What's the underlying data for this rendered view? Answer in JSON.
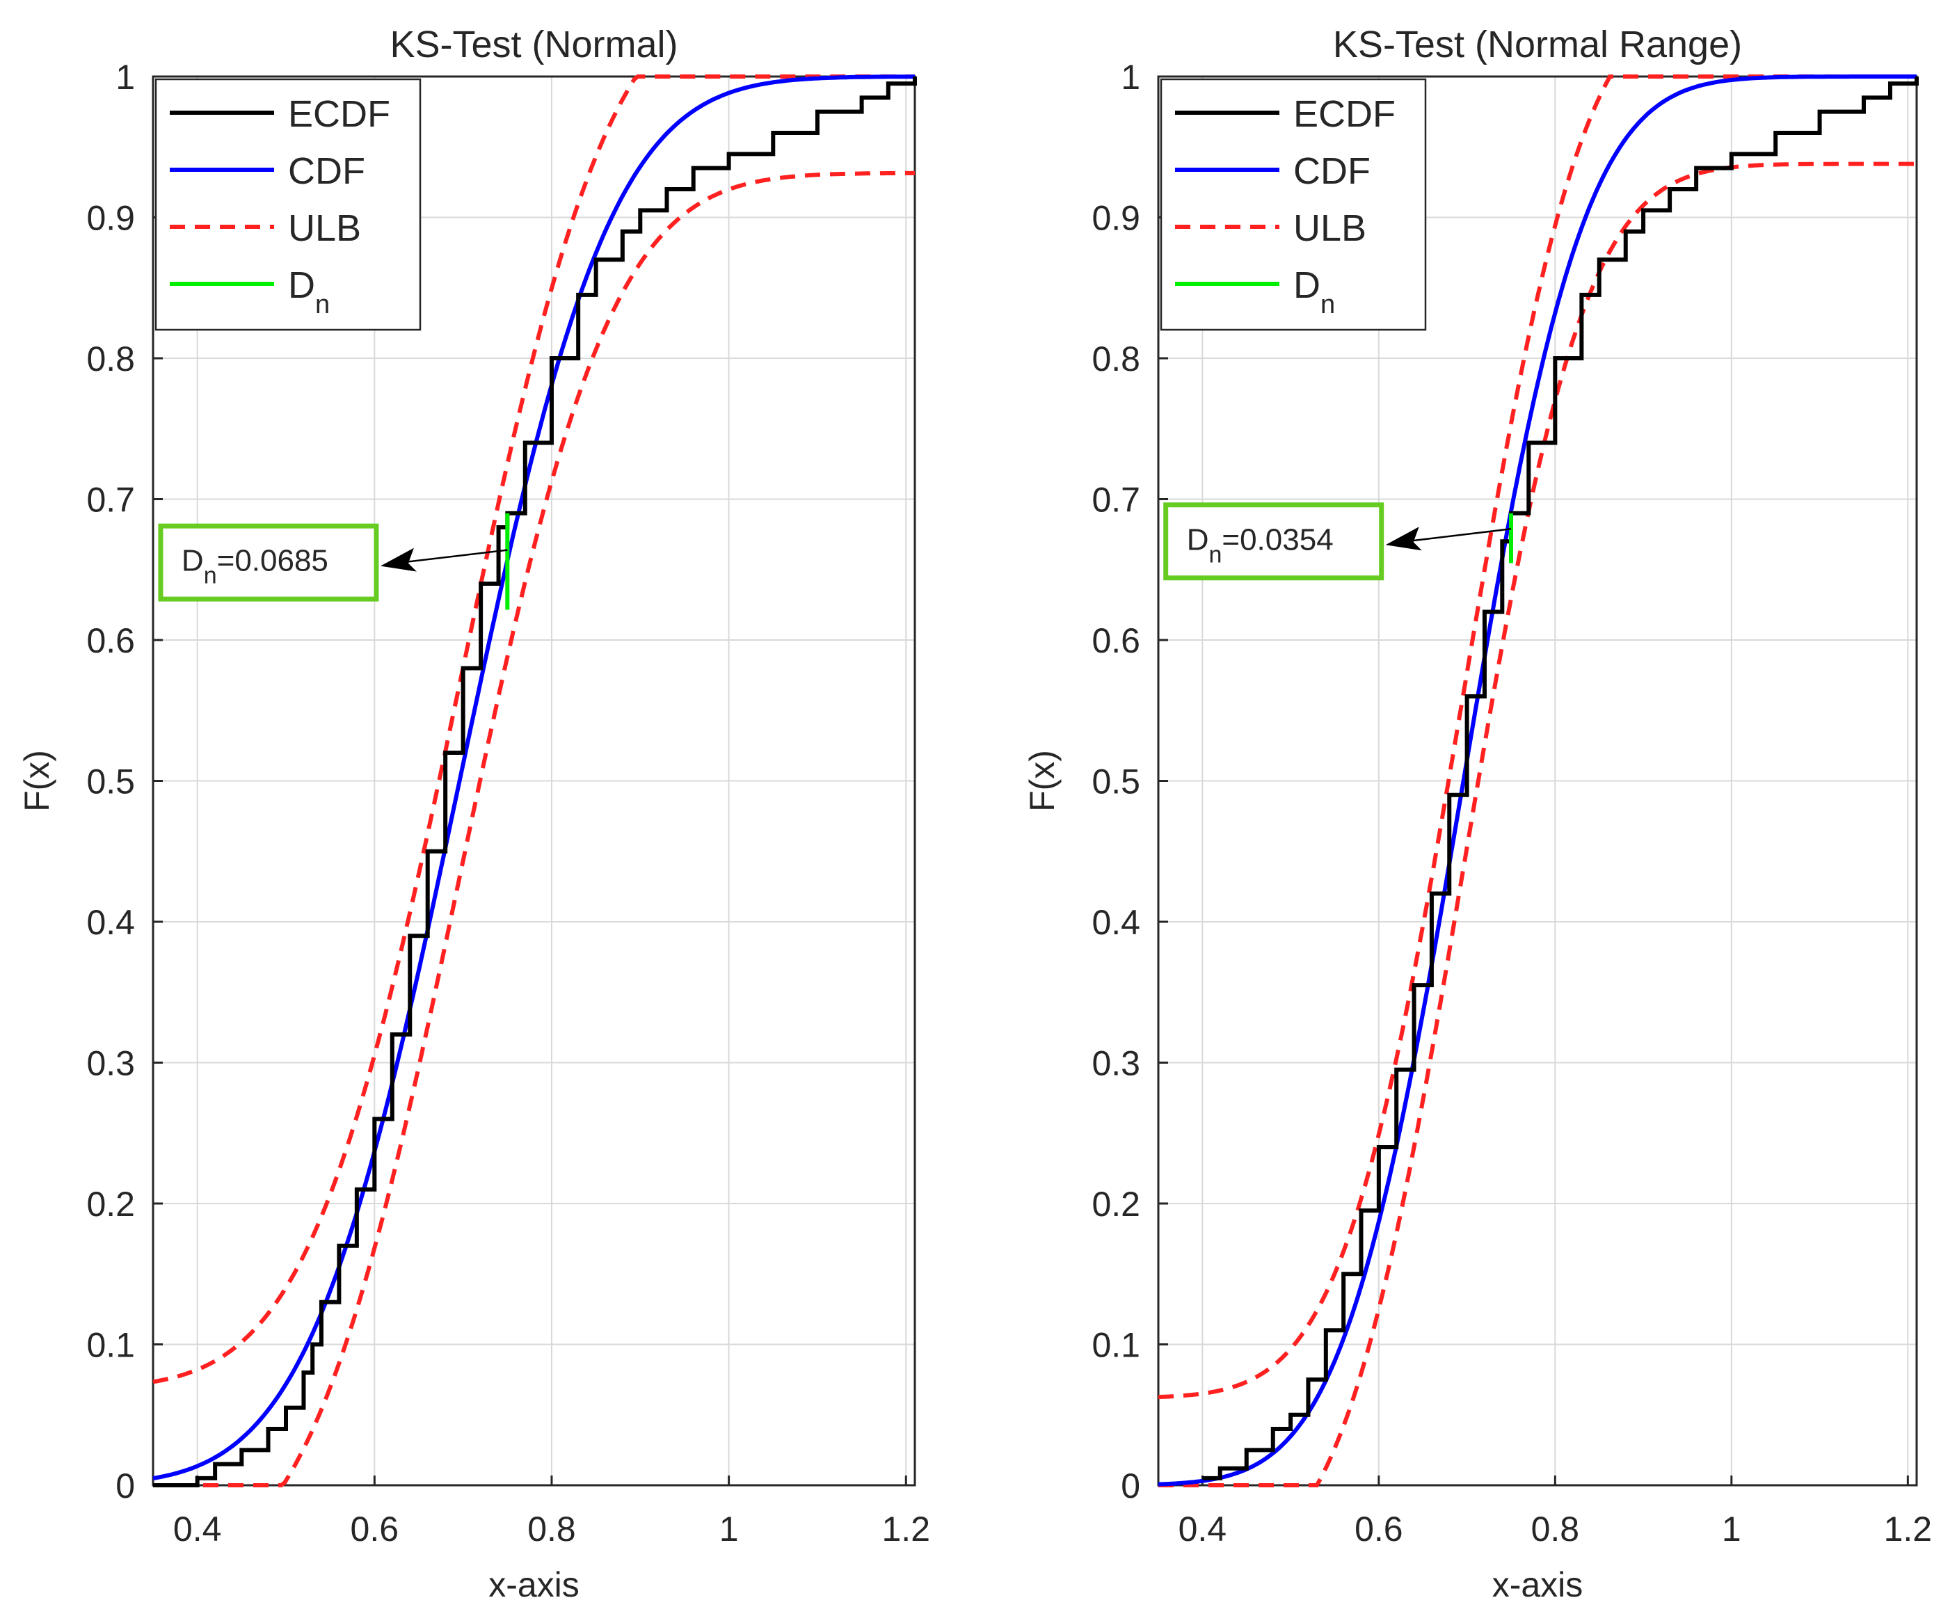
{
  "colors": {
    "ecdf": "#000000",
    "cdf": "#0000ff",
    "ulb": "#ff2020",
    "dn": "#00ee00",
    "annotation_box": "#66cc22",
    "grid": "#d9d9d9",
    "axes": "#262626"
  },
  "chart_data": [
    {
      "type": "line",
      "title": "KS-Test (Normal)",
      "xlabel": "x-axis",
      "ylabel": "F(x)",
      "xlim": [
        0.35,
        1.21
      ],
      "ylim": [
        0,
        1
      ],
      "grid": true,
      "xticks": [
        0.4,
        0.6,
        0.8,
        1,
        1.2
      ],
      "xtick_labels": [
        "0.4",
        "0.6",
        "0.8",
        "1",
        "1.2"
      ],
      "yticks": [
        0,
        0.1,
        0.2,
        0.3,
        0.4,
        0.5,
        0.6,
        0.7,
        0.8,
        0.9,
        1
      ],
      "ytick_labels": [
        "0",
        "0.1",
        "0.2",
        "0.3",
        "0.4",
        "0.5",
        "0.6",
        "0.7",
        "0.8",
        "0.9",
        "1"
      ],
      "legend": {
        "placement": "top-left",
        "entries": [
          {
            "label": "ECDF",
            "series": "ecdf"
          },
          {
            "label": "CDF",
            "series": "cdf"
          },
          {
            "label": "ULB",
            "series": "ulb"
          },
          {
            "label": "D",
            "sub": "n",
            "series": "dn"
          }
        ]
      },
      "series": [
        {
          "name": "ECDF",
          "key": "ecdf",
          "style": "solid",
          "x": [
            0.35,
            0.39,
            0.4,
            0.42,
            0.45,
            0.48,
            0.5,
            0.52,
            0.53,
            0.54,
            0.56,
            0.58,
            0.6,
            0.62,
            0.64,
            0.66,
            0.68,
            0.7,
            0.72,
            0.74,
            0.75,
            0.77,
            0.8,
            0.83,
            0.85,
            0.88,
            0.9,
            0.93,
            0.96,
            1.0,
            1.05,
            1.1,
            1.15,
            1.18,
            1.21
          ],
          "y": [
            0,
            0,
            0.005,
            0.015,
            0.025,
            0.04,
            0.055,
            0.08,
            0.1,
            0.13,
            0.17,
            0.21,
            0.26,
            0.32,
            0.39,
            0.45,
            0.52,
            0.58,
            0.64,
            0.68,
            0.69,
            0.74,
            0.8,
            0.845,
            0.87,
            0.89,
            0.905,
            0.92,
            0.935,
            0.945,
            0.96,
            0.975,
            0.985,
            0.995,
            1
          ]
        },
        {
          "name": "CDF",
          "key": "cdf",
          "style": "solid",
          "mu": 0.696,
          "sigma": 0.134
        },
        {
          "name": "ULB upper",
          "key": "ulb",
          "style": "dashed",
          "offset": 0.0685
        },
        {
          "name": "ULB lower",
          "key": "ulb",
          "style": "dashed",
          "offset": -0.0685
        },
        {
          "name": "D_n",
          "key": "dn",
          "style": "solid",
          "x": [
            0.75,
            0.75
          ],
          "y": [
            0.69,
            0.6215
          ]
        }
      ],
      "annotation": {
        "prefix": "D",
        "sub": "n",
        "value_text": "=0.0685",
        "arrow_to": [
          0.75,
          0.655
        ],
        "box_anchor": [
          0.39,
          0.655
        ]
      }
    },
    {
      "type": "line",
      "title": "KS-Test (Normal Range)",
      "xlabel": "x-axis",
      "ylabel": "F(x)",
      "xlim": [
        0.35,
        1.21
      ],
      "ylim": [
        0,
        1
      ],
      "grid": true,
      "xticks": [
        0.4,
        0.6,
        0.8,
        1,
        1.2
      ],
      "xtick_labels": [
        "0.4",
        "0.6",
        "0.8",
        "1",
        "1.2"
      ],
      "yticks": [
        0,
        0.1,
        0.2,
        0.3,
        0.4,
        0.5,
        0.6,
        0.7,
        0.8,
        0.9,
        1
      ],
      "ytick_labels": [
        "0",
        "0.1",
        "0.2",
        "0.3",
        "0.4",
        "0.5",
        "0.6",
        "0.7",
        "0.8",
        "0.9",
        "1"
      ],
      "legend": {
        "placement": "top-left",
        "entries": [
          {
            "label": "ECDF",
            "series": "ecdf"
          },
          {
            "label": "CDF",
            "series": "cdf"
          },
          {
            "label": "ULB",
            "series": "ulb"
          },
          {
            "label": "D",
            "sub": "n",
            "series": "dn"
          }
        ]
      },
      "series": [
        {
          "name": "ECDF",
          "key": "ecdf",
          "style": "solid",
          "x": [
            0.4,
            0.42,
            0.45,
            0.48,
            0.5,
            0.52,
            0.54,
            0.56,
            0.58,
            0.6,
            0.62,
            0.64,
            0.66,
            0.68,
            0.7,
            0.72,
            0.74,
            0.75,
            0.77,
            0.8,
            0.83,
            0.85,
            0.88,
            0.9,
            0.93,
            0.96,
            1.0,
            1.05,
            1.1,
            1.15,
            1.18,
            1.21
          ],
          "y": [
            0.005,
            0.012,
            0.025,
            0.04,
            0.05,
            0.075,
            0.11,
            0.15,
            0.195,
            0.24,
            0.295,
            0.355,
            0.42,
            0.49,
            0.56,
            0.62,
            0.67,
            0.69,
            0.74,
            0.8,
            0.845,
            0.87,
            0.89,
            0.905,
            0.92,
            0.935,
            0.945,
            0.96,
            0.975,
            0.985,
            0.995,
            1
          ]
        },
        {
          "name": "CDF",
          "key": "cdf",
          "style": "solid",
          "mu": 0.696,
          "sigma": 0.108
        },
        {
          "name": "ULB upper",
          "key": "ulb",
          "style": "dashed",
          "offset": 0.062
        },
        {
          "name": "ULB lower",
          "key": "ulb",
          "style": "dashed",
          "offset": -0.062
        },
        {
          "name": "D_n",
          "key": "dn",
          "style": "solid",
          "x": [
            0.75,
            0.75
          ],
          "y": [
            0.69,
            0.6546
          ]
        }
      ],
      "annotation": {
        "prefix": "D",
        "sub": "n",
        "value_text": "=0.0354",
        "arrow_to": [
          0.75,
          0.67
        ],
        "box_anchor": [
          0.39,
          0.67
        ]
      }
    }
  ]
}
